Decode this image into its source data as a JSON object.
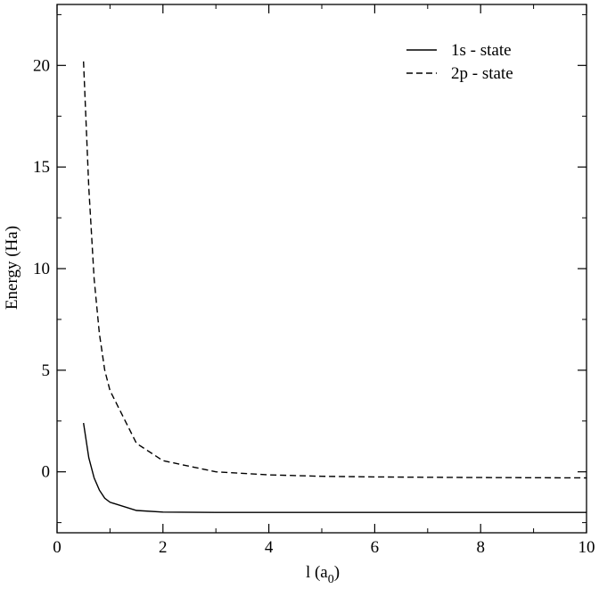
{
  "chart_data": {
    "type": "line",
    "title": "",
    "xlabel": "l (a",
    "xlabel_subscript": "0",
    "xlabel_suffix": ")",
    "ylabel": "Energy (Ha)",
    "xlim": [
      0,
      10
    ],
    "ylim": [
      -3,
      23
    ],
    "xticks": [
      0,
      2,
      4,
      6,
      8,
      10
    ],
    "yticks": [
      0,
      5,
      10,
      15,
      20
    ],
    "grid": false,
    "legend_position": "top-right",
    "series": [
      {
        "name": "1s - state",
        "style": "solid",
        "color": "#000000",
        "x": [
          0.5,
          0.6,
          0.7,
          0.8,
          0.9,
          1.0,
          1.5,
          2.0,
          3.0,
          4.0,
          5.0,
          6.0,
          7.0,
          8.0,
          9.0,
          10.0
        ],
        "y": [
          2.4,
          0.7,
          -0.3,
          -0.9,
          -1.3,
          -1.5,
          -1.9,
          -1.98,
          -2.0,
          -2.0,
          -2.0,
          -2.0,
          -2.0,
          -2.0,
          -2.0,
          -2.0
        ]
      },
      {
        "name": "2p - state",
        "style": "dashed",
        "color": "#000000",
        "x": [
          0.5,
          0.6,
          0.7,
          0.8,
          0.9,
          1.0,
          1.5,
          2.0,
          3.0,
          4.0,
          5.0,
          6.0,
          7.0,
          8.0,
          9.0,
          10.0
        ],
        "y": [
          20.2,
          14.0,
          9.5,
          6.8,
          5.0,
          4.0,
          1.4,
          0.55,
          0.0,
          -0.15,
          -0.22,
          -0.25,
          -0.27,
          -0.28,
          -0.29,
          -0.3
        ]
      }
    ]
  }
}
